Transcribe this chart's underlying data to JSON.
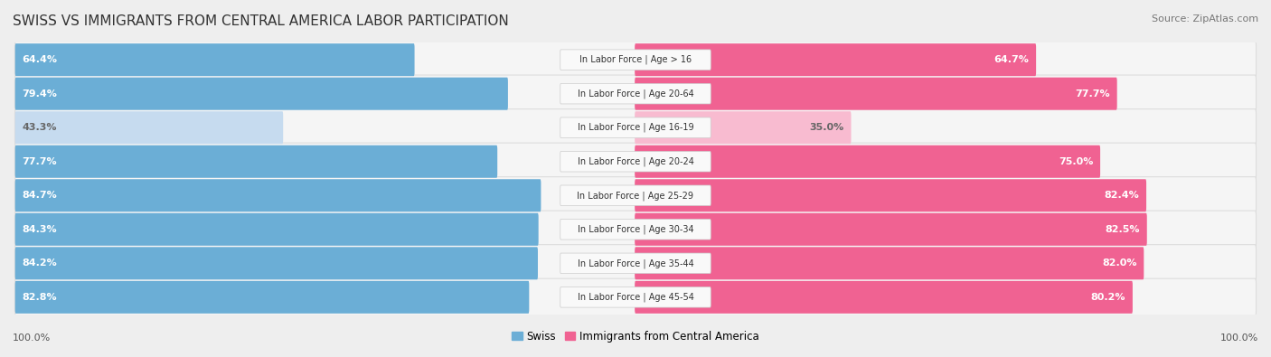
{
  "title": "SWISS VS IMMIGRANTS FROM CENTRAL AMERICA LABOR PARTICIPATION",
  "source": "Source: ZipAtlas.com",
  "categories": [
    "In Labor Force | Age > 16",
    "In Labor Force | Age 20-64",
    "In Labor Force | Age 16-19",
    "In Labor Force | Age 20-24",
    "In Labor Force | Age 25-29",
    "In Labor Force | Age 30-34",
    "In Labor Force | Age 35-44",
    "In Labor Force | Age 45-54"
  ],
  "swiss_values": [
    64.4,
    79.4,
    43.3,
    77.7,
    84.7,
    84.3,
    84.2,
    82.8
  ],
  "immigrant_values": [
    64.7,
    77.7,
    35.0,
    75.0,
    82.4,
    82.5,
    82.0,
    80.2
  ],
  "swiss_color": "#6BAED6",
  "swiss_color_light": "#C6DBEF",
  "immigrant_color": "#F06292",
  "immigrant_color_light": "#F8BBD0",
  "label_color_white": "#ffffff",
  "label_color_dark": "#666666",
  "background_color": "#eeeeee",
  "row_bg_color": "#f5f5f5",
  "row_border_color": "#dddddd",
  "max_value": 100.0,
  "legend_swiss": "Swiss",
  "legend_immigrant": "Immigrants from Central America",
  "bottom_left_label": "100.0%",
  "bottom_right_label": "100.0%",
  "title_fontsize": 11,
  "source_fontsize": 8,
  "bar_label_fontsize": 8,
  "category_fontsize": 7,
  "legend_fontsize": 8.5
}
